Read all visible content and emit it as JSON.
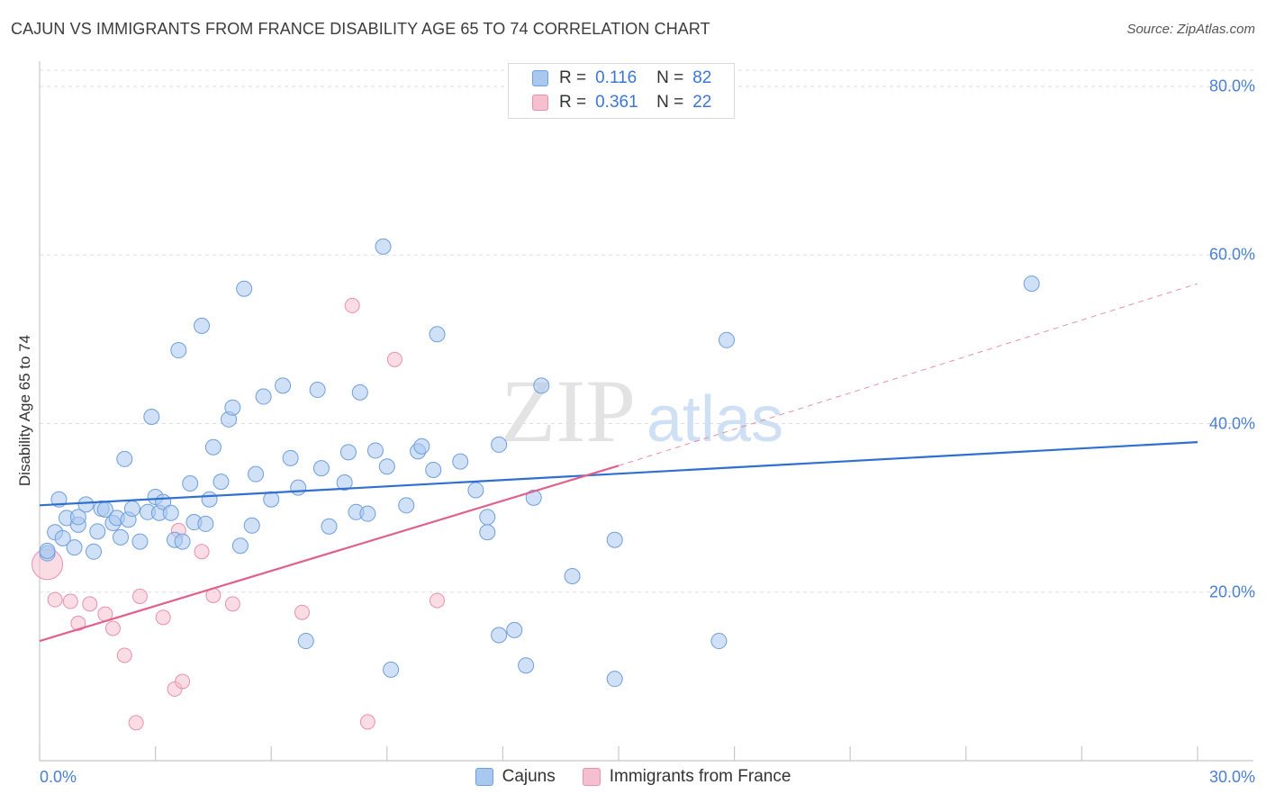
{
  "header": {
    "title": "CAJUN VS IMMIGRANTS FROM FRANCE DISABILITY AGE 65 TO 74 CORRELATION CHART",
    "source": "Source: ZipAtlas.com"
  },
  "watermark": {
    "zip": "ZIP",
    "atlas": "atlas"
  },
  "legend_top": {
    "rows": [
      {
        "r_label": "R =",
        "r_value": "0.116",
        "n_label": "N =",
        "n_value": "82"
      },
      {
        "r_label": "R =",
        "r_value": "0.361",
        "n_label": "N =",
        "n_value": "22"
      }
    ]
  },
  "colors": {
    "blue_fill": "#a9c8f0",
    "blue_stroke": "#6e9fdc",
    "blue_line": "#2e6fd1",
    "pink_fill": "#f6bfd0",
    "pink_stroke": "#e890ae",
    "pink_line": "#e0608c",
    "grid": "#dddddd",
    "tick_text": "#4a7fcf"
  },
  "chart_data": {
    "type": "scatter",
    "title": "CAJUN VS IMMIGRANTS FROM FRANCE DISABILITY AGE 65 TO 74 CORRELATION CHART",
    "xlabel": "",
    "ylabel": "Disability Age 65 to 74",
    "xlim": [
      0,
      30
    ],
    "ylim": [
      0,
      80
    ],
    "x_tick_labels": [
      "0.0%",
      "30.0%"
    ],
    "y_ticks": [
      20,
      40,
      60,
      80
    ],
    "y_tick_labels": [
      "20.0%",
      "40.0%",
      "60.0%",
      "80.0%"
    ],
    "legend_position": "bottom-center",
    "series": [
      {
        "name": "Cajuns",
        "r": 0.116,
        "n": 82,
        "trend": {
          "x0": 0,
          "y0": 30.3,
          "x1": 30,
          "y1": 37.8,
          "dashed_to": 30
        },
        "points": [
          [
            0.2,
            24.6
          ],
          [
            0.4,
            27.1
          ],
          [
            0.5,
            31.0
          ],
          [
            0.6,
            26.4
          ],
          [
            0.7,
            28.8
          ],
          [
            0.9,
            25.3
          ],
          [
            1.0,
            28.0
          ],
          [
            1.0,
            28.9
          ],
          [
            1.2,
            30.4
          ],
          [
            1.4,
            24.8
          ],
          [
            1.5,
            27.2
          ],
          [
            1.6,
            29.9
          ],
          [
            1.7,
            29.8
          ],
          [
            1.9,
            28.2
          ],
          [
            2.0,
            28.8
          ],
          [
            2.1,
            26.5
          ],
          [
            2.2,
            35.8
          ],
          [
            2.3,
            28.6
          ],
          [
            2.4,
            29.9
          ],
          [
            2.6,
            26.0
          ],
          [
            2.8,
            29.5
          ],
          [
            2.9,
            40.8
          ],
          [
            3.0,
            31.3
          ],
          [
            3.1,
            29.4
          ],
          [
            3.2,
            30.7
          ],
          [
            3.4,
            29.4
          ],
          [
            3.5,
            26.2
          ],
          [
            3.6,
            48.7
          ],
          [
            3.7,
            26.0
          ],
          [
            3.9,
            32.9
          ],
          [
            4.0,
            28.3
          ],
          [
            4.2,
            51.6
          ],
          [
            4.3,
            28.1
          ],
          [
            4.4,
            31.0
          ],
          [
            4.5,
            37.2
          ],
          [
            4.7,
            33.1
          ],
          [
            4.9,
            40.5
          ],
          [
            5.0,
            41.9
          ],
          [
            5.2,
            25.5
          ],
          [
            5.3,
            56.0
          ],
          [
            5.5,
            27.9
          ],
          [
            5.6,
            34.0
          ],
          [
            5.8,
            43.2
          ],
          [
            6.0,
            31.0
          ],
          [
            6.3,
            44.5
          ],
          [
            6.5,
            35.9
          ],
          [
            6.7,
            32.4
          ],
          [
            6.9,
            14.2
          ],
          [
            7.2,
            44.0
          ],
          [
            7.3,
            34.7
          ],
          [
            7.5,
            27.8
          ],
          [
            7.9,
            33.0
          ],
          [
            8.0,
            36.6
          ],
          [
            8.2,
            29.5
          ],
          [
            8.3,
            43.7
          ],
          [
            8.5,
            29.3
          ],
          [
            8.7,
            36.8
          ],
          [
            8.9,
            61.0
          ],
          [
            9.0,
            34.9
          ],
          [
            9.1,
            10.8
          ],
          [
            9.5,
            30.3
          ],
          [
            9.8,
            36.7
          ],
          [
            9.9,
            37.3
          ],
          [
            10.2,
            34.5
          ],
          [
            10.3,
            50.6
          ],
          [
            10.9,
            35.5
          ],
          [
            11.3,
            32.1
          ],
          [
            11.6,
            27.1
          ],
          [
            11.6,
            28.9
          ],
          [
            11.9,
            37.5
          ],
          [
            11.9,
            14.9
          ],
          [
            12.3,
            15.5
          ],
          [
            12.6,
            11.3
          ],
          [
            12.8,
            31.2
          ],
          [
            13.0,
            44.5
          ],
          [
            13.8,
            21.9
          ],
          [
            14.9,
            26.2
          ],
          [
            14.9,
            9.7
          ],
          [
            17.6,
            14.2
          ],
          [
            17.8,
            49.9
          ],
          [
            25.7,
            56.6
          ],
          [
            0.2,
            24.9
          ]
        ]
      },
      {
        "name": "Immigrants from France",
        "r": 0.361,
        "n": 22,
        "trend": {
          "x0": 0,
          "y0": 14.2,
          "x1": 15,
          "y1": 35.0,
          "dashed_x1": 30,
          "dashed_y1": 56.6
        },
        "points": [
          [
            0.2,
            23.3
          ],
          [
            0.4,
            19.1
          ],
          [
            0.8,
            18.9
          ],
          [
            1.0,
            16.3
          ],
          [
            1.3,
            18.6
          ],
          [
            1.7,
            17.4
          ],
          [
            1.9,
            15.7
          ],
          [
            2.2,
            12.5
          ],
          [
            2.5,
            4.5
          ],
          [
            2.6,
            19.5
          ],
          [
            3.2,
            17.0
          ],
          [
            3.5,
            8.5
          ],
          [
            3.6,
            27.3
          ],
          [
            3.7,
            9.4
          ],
          [
            4.2,
            24.8
          ],
          [
            4.5,
            19.6
          ],
          [
            5.0,
            18.6
          ],
          [
            6.8,
            17.6
          ],
          [
            8.1,
            54.0
          ],
          [
            8.5,
            4.6
          ],
          [
            9.2,
            47.6
          ],
          [
            10.3,
            19.0
          ]
        ]
      }
    ]
  },
  "legend_bottom": {
    "items": [
      {
        "label": "Cajuns"
      },
      {
        "label": "Immigrants from France"
      }
    ]
  }
}
